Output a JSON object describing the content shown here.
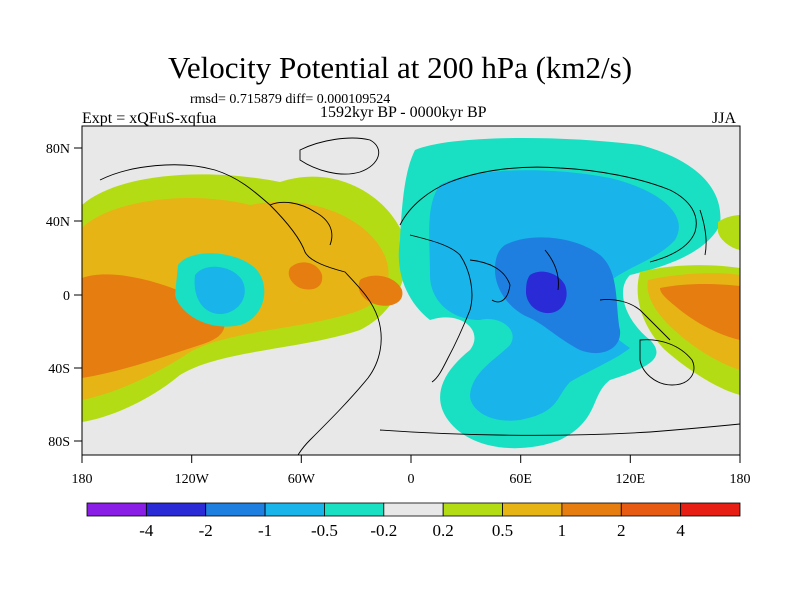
{
  "header": {
    "title": "Velocity Potential at 200 hPa (km2/s)",
    "stats": "rmsd= 0.715879 diff= 0.000109524",
    "experiment": "Expt = xQFuS-xqfua",
    "period": "1592kyr BP - 0000kyr BP",
    "season": "JJA"
  },
  "axes": {
    "x_ticks": [
      "180",
      "120W",
      "60W",
      "0",
      "60E",
      "120E",
      "180"
    ],
    "y_ticks": [
      "80N",
      "40N",
      "0",
      "40S",
      "80S"
    ]
  },
  "colorbar": {
    "labels": [
      "-4",
      "-2",
      "-1",
      "-0.5",
      "-0.2",
      "0.2",
      "0.5",
      "1",
      "2",
      "4"
    ],
    "colors": [
      "#8a1ee6",
      "#2a2ad6",
      "#1e7fe0",
      "#19b4ea",
      "#19e0c2",
      "#e8e8e8",
      "#b4dc14",
      "#e6b414",
      "#e67d10",
      "#e65a14",
      "#e61e14"
    ]
  },
  "legend_colors": {
    "background": "#e8e8e8",
    "cyan": "#19e0c2",
    "light_blue": "#19b4ea",
    "blue": "#1e7fe0",
    "dark_blue": "#2a2ad6",
    "lime": "#b4dc14",
    "yellow_orange": "#e6b414",
    "orange": "#e67d10"
  }
}
